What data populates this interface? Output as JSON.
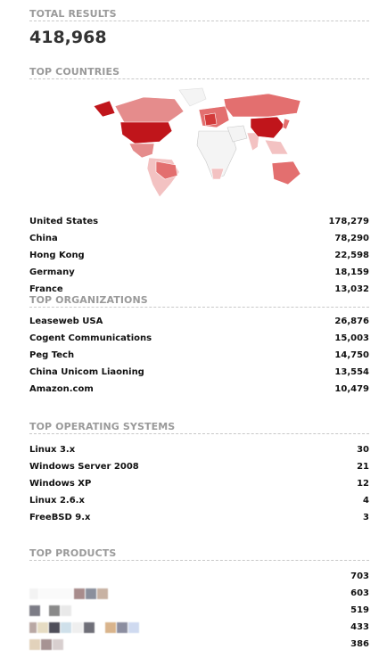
{
  "total": {
    "title": "TOTAL RESULTS",
    "value": "418,968"
  },
  "countries": {
    "title": "TOP COUNTRIES",
    "items": [
      {
        "label": "United States",
        "value": "178,279"
      },
      {
        "label": "China",
        "value": "78,290"
      },
      {
        "label": "Hong Kong",
        "value": "22,598"
      },
      {
        "label": "Germany",
        "value": "18,159"
      },
      {
        "label": "France",
        "value": "13,032"
      }
    ]
  },
  "organizations": {
    "title": "TOP ORGANIZATIONS",
    "items": [
      {
        "label": "Leaseweb USA",
        "value": "26,876"
      },
      {
        "label": "Cogent Communications",
        "value": "15,003"
      },
      {
        "label": "Peg Tech",
        "value": "14,750"
      },
      {
        "label": "China Unicom Liaoning",
        "value": "13,554"
      },
      {
        "label": "Amazon.com",
        "value": "10,479"
      }
    ]
  },
  "os": {
    "title": "TOP OPERATING SYSTEMS",
    "items": [
      {
        "label": "Linux 3.x",
        "value": "30"
      },
      {
        "label": "Windows Server 2008",
        "value": "21"
      },
      {
        "label": "Windows XP",
        "value": "12"
      },
      {
        "label": "Linux 2.6.x",
        "value": "4"
      },
      {
        "label": "FreeBSD 9.x",
        "value": "3"
      }
    ]
  },
  "products": {
    "title": "TOP PRODUCTS",
    "items": [
      {
        "value": "703"
      },
      {
        "value": "603"
      },
      {
        "value": "519"
      },
      {
        "value": "433"
      },
      {
        "value": "386"
      }
    ]
  },
  "colors": {
    "map_high": "#c0151b",
    "map_mid": "#e36f6f",
    "map_low": "#f3c2c2",
    "map_none": "#f4f4f4",
    "title_gray": "#9a9a9a"
  }
}
